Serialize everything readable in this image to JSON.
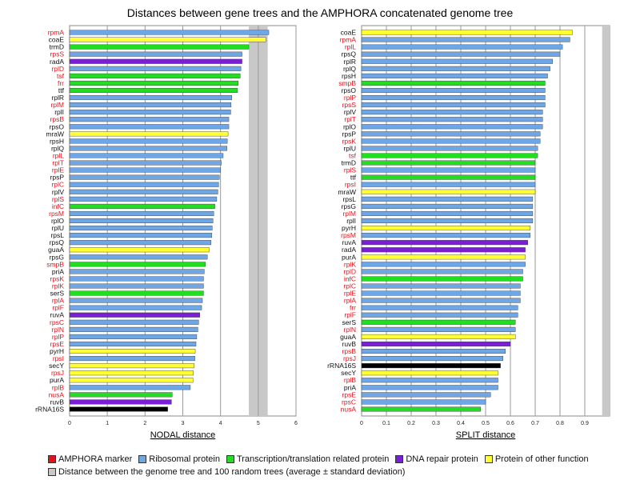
{
  "title": "Distances between gene trees and the AMPHORA concatenated genome tree",
  "colors": {
    "amphora_text": "#e0141e",
    "plain_text": "#111111",
    "ribosomal": "#6fa6e6",
    "transcription": "#22dd22",
    "dna_repair": "#7a1fd6",
    "other": "#ffff33",
    "amphora_marker": "#e0141e",
    "rrna": "#000000",
    "band": "#c8c8c8"
  },
  "legend": [
    {
      "label": "AMPHORA marker",
      "color": "#e0141e"
    },
    {
      "label": "Ribosomal protein",
      "color": "#6fa6e6"
    },
    {
      "label": "Transcription/translation related protein",
      "color": "#22dd22"
    },
    {
      "label": "DNA repair protein",
      "color": "#7a1fd6"
    },
    {
      "label": "Protein of other function",
      "color": "#ffff33"
    }
  ],
  "legend_band": {
    "label": "Distance between the genome tree and 100 random trees (average ± standard deviation)",
    "color": "#c8c8c8"
  },
  "chart_data": [
    {
      "type": "bar",
      "orientation": "horizontal",
      "xlabel": "NODAL distance",
      "xlim": [
        0,
        6
      ],
      "xticks": [
        0,
        1,
        2,
        3,
        4,
        5,
        6
      ],
      "grid": true,
      "band": [
        4.75,
        5.25
      ],
      "genes": [
        {
          "name": "rpmA",
          "value": 5.28,
          "color": "ribosomal",
          "amphora": true
        },
        {
          "name": "coaE",
          "value": 5.2,
          "color": "other",
          "amphora": false
        },
        {
          "name": "trmD",
          "value": 4.75,
          "color": "transcription",
          "amphora": false
        },
        {
          "name": "rpsS",
          "value": 4.57,
          "color": "ribosomal",
          "amphora": true
        },
        {
          "name": "radA",
          "value": 4.57,
          "color": "dna_repair",
          "amphora": false
        },
        {
          "name": "rplD",
          "value": 4.54,
          "color": "ribosomal",
          "amphora": true
        },
        {
          "name": "tsf",
          "value": 4.52,
          "color": "transcription",
          "amphora": true
        },
        {
          "name": "frr",
          "value": 4.47,
          "color": "transcription",
          "amphora": true
        },
        {
          "name": "ttf",
          "value": 4.45,
          "color": "transcription",
          "amphora": false
        },
        {
          "name": "rplR",
          "value": 4.3,
          "color": "ribosomal",
          "amphora": false
        },
        {
          "name": "rplM",
          "value": 4.28,
          "color": "ribosomal",
          "amphora": true
        },
        {
          "name": "rplI",
          "value": 4.27,
          "color": "ribosomal",
          "amphora": false
        },
        {
          "name": "rpsB",
          "value": 4.22,
          "color": "ribosomal",
          "amphora": true
        },
        {
          "name": "rpsO",
          "value": 4.22,
          "color": "ribosomal",
          "amphora": false
        },
        {
          "name": "mraW",
          "value": 4.2,
          "color": "other",
          "amphora": false
        },
        {
          "name": "rpsH",
          "value": 4.18,
          "color": "ribosomal",
          "amphora": false
        },
        {
          "name": "rplQ",
          "value": 4.17,
          "color": "ribosomal",
          "amphora": false
        },
        {
          "name": "rplL",
          "value": 4.07,
          "color": "ribosomal",
          "amphora": true
        },
        {
          "name": "rplT",
          "value": 4.02,
          "color": "ribosomal",
          "amphora": true
        },
        {
          "name": "rplE",
          "value": 4.0,
          "color": "ribosomal",
          "amphora": true
        },
        {
          "name": "rpsP",
          "value": 3.97,
          "color": "ribosomal",
          "amphora": false
        },
        {
          "name": "rplC",
          "value": 3.95,
          "color": "ribosomal",
          "amphora": true
        },
        {
          "name": "rplV",
          "value": 3.93,
          "color": "ribosomal",
          "amphora": false
        },
        {
          "name": "rplS",
          "value": 3.9,
          "color": "ribosomal",
          "amphora": true
        },
        {
          "name": "infC",
          "value": 3.85,
          "color": "transcription",
          "amphora": true
        },
        {
          "name": "rpsM",
          "value": 3.82,
          "color": "ribosomal",
          "amphora": true
        },
        {
          "name": "rplO",
          "value": 3.8,
          "color": "ribosomal",
          "amphora": false
        },
        {
          "name": "rplU",
          "value": 3.78,
          "color": "ribosomal",
          "amphora": false
        },
        {
          "name": "rpsL",
          "value": 3.77,
          "color": "ribosomal",
          "amphora": false
        },
        {
          "name": "rpsQ",
          "value": 3.75,
          "color": "ribosomal",
          "amphora": false
        },
        {
          "name": "guaA",
          "value": 3.7,
          "color": "other",
          "amphora": false
        },
        {
          "name": "rpsG",
          "value": 3.65,
          "color": "ribosomal",
          "amphora": false
        },
        {
          "name": "smpB",
          "value": 3.6,
          "color": "transcription",
          "amphora": true
        },
        {
          "name": "priA",
          "value": 3.57,
          "color": "ribosomal",
          "amphora": false
        },
        {
          "name": "rpsK",
          "value": 3.55,
          "color": "ribosomal",
          "amphora": true
        },
        {
          "name": "rplK",
          "value": 3.55,
          "color": "ribosomal",
          "amphora": true
        },
        {
          "name": "serS",
          "value": 3.55,
          "color": "transcription",
          "amphora": false
        },
        {
          "name": "rplA",
          "value": 3.52,
          "color": "ribosomal",
          "amphora": true
        },
        {
          "name": "rplF",
          "value": 3.5,
          "color": "ribosomal",
          "amphora": true
        },
        {
          "name": "ruvA",
          "value": 3.45,
          "color": "dna_repair",
          "amphora": false
        },
        {
          "name": "rpsC",
          "value": 3.42,
          "color": "ribosomal",
          "amphora": true
        },
        {
          "name": "rplN",
          "value": 3.4,
          "color": "ribosomal",
          "amphora": true
        },
        {
          "name": "rplP",
          "value": 3.37,
          "color": "ribosomal",
          "amphora": true
        },
        {
          "name": "rpsE",
          "value": 3.35,
          "color": "ribosomal",
          "amphora": true
        },
        {
          "name": "pyrH",
          "value": 3.33,
          "color": "other",
          "amphora": false
        },
        {
          "name": "rpsI",
          "value": 3.32,
          "color": "ribosomal",
          "amphora": true
        },
        {
          "name": "secY",
          "value": 3.3,
          "color": "other",
          "amphora": false
        },
        {
          "name": "rpsJ",
          "value": 3.28,
          "color": "other",
          "amphora": true
        },
        {
          "name": "purA",
          "value": 3.27,
          "color": "other",
          "amphora": false
        },
        {
          "name": "rplB",
          "value": 3.2,
          "color": "ribosomal",
          "amphora": true
        },
        {
          "name": "nusA",
          "value": 2.72,
          "color": "transcription",
          "amphora": true
        },
        {
          "name": "ruvB",
          "value": 2.7,
          "color": "dna_repair",
          "amphora": false
        },
        {
          "name": "rRNA16S",
          "value": 2.6,
          "color": "rrna",
          "amphora": false
        }
      ]
    },
    {
      "type": "bar",
      "orientation": "horizontal",
      "xlabel": "SPLIT distance",
      "xlim": [
        0,
        1
      ],
      "xticks": [
        0,
        0.1,
        0.2,
        0.3,
        0.4,
        0.5,
        0.6,
        0.7,
        0.8,
        0.9
      ],
      "grid": true,
      "band": [
        0.97,
        1.0
      ],
      "genes": [
        {
          "name": "coaE",
          "value": 0.85,
          "color": "other",
          "amphora": false
        },
        {
          "name": "rpmA",
          "value": 0.84,
          "color": "ribosomal",
          "amphora": true
        },
        {
          "name": "rplL",
          "value": 0.81,
          "color": "ribosomal",
          "amphora": true
        },
        {
          "name": "rpsQ",
          "value": 0.8,
          "color": "ribosomal",
          "amphora": false
        },
        {
          "name": "rplR",
          "value": 0.77,
          "color": "ribosomal",
          "amphora": false
        },
        {
          "name": "rplQ",
          "value": 0.76,
          "color": "ribosomal",
          "amphora": false
        },
        {
          "name": "rpsH",
          "value": 0.75,
          "color": "ribosomal",
          "amphora": false
        },
        {
          "name": "smpB",
          "value": 0.74,
          "color": "transcription",
          "amphora": true
        },
        {
          "name": "rpsO",
          "value": 0.74,
          "color": "ribosomal",
          "amphora": false
        },
        {
          "name": "rplP",
          "value": 0.74,
          "color": "ribosomal",
          "amphora": true
        },
        {
          "name": "rpsS",
          "value": 0.74,
          "color": "ribosomal",
          "amphora": true
        },
        {
          "name": "rplV",
          "value": 0.73,
          "color": "ribosomal",
          "amphora": false
        },
        {
          "name": "rplT",
          "value": 0.73,
          "color": "ribosomal",
          "amphora": true
        },
        {
          "name": "rplO",
          "value": 0.73,
          "color": "ribosomal",
          "amphora": false
        },
        {
          "name": "rpsP",
          "value": 0.72,
          "color": "ribosomal",
          "amphora": false
        },
        {
          "name": "rpsK",
          "value": 0.72,
          "color": "ribosomal",
          "amphora": true
        },
        {
          "name": "rplU",
          "value": 0.71,
          "color": "ribosomal",
          "amphora": false
        },
        {
          "name": "tsf",
          "value": 0.71,
          "color": "transcription",
          "amphora": true
        },
        {
          "name": "trmD",
          "value": 0.7,
          "color": "transcription",
          "amphora": false
        },
        {
          "name": "rplS",
          "value": 0.7,
          "color": "ribosomal",
          "amphora": true
        },
        {
          "name": "ttf",
          "value": 0.7,
          "color": "transcription",
          "amphora": false
        },
        {
          "name": "rpsI",
          "value": 0.7,
          "color": "ribosomal",
          "amphora": true
        },
        {
          "name": "mraW",
          "value": 0.7,
          "color": "other",
          "amphora": false
        },
        {
          "name": "rpsL",
          "value": 0.69,
          "color": "ribosomal",
          "amphora": false
        },
        {
          "name": "rpsG",
          "value": 0.69,
          "color": "ribosomal",
          "amphora": false
        },
        {
          "name": "rplM",
          "value": 0.69,
          "color": "ribosomal",
          "amphora": true
        },
        {
          "name": "rplI",
          "value": 0.69,
          "color": "ribosomal",
          "amphora": false
        },
        {
          "name": "pyrH",
          "value": 0.68,
          "color": "other",
          "amphora": false
        },
        {
          "name": "rpsM",
          "value": 0.68,
          "color": "ribosomal",
          "amphora": true
        },
        {
          "name": "ruvA",
          "value": 0.67,
          "color": "dna_repair",
          "amphora": false
        },
        {
          "name": "radA",
          "value": 0.66,
          "color": "dna_repair",
          "amphora": false
        },
        {
          "name": "purA",
          "value": 0.66,
          "color": "other",
          "amphora": false
        },
        {
          "name": "rplK",
          "value": 0.66,
          "color": "ribosomal",
          "amphora": true
        },
        {
          "name": "rplD",
          "value": 0.65,
          "color": "ribosomal",
          "amphora": true
        },
        {
          "name": "infC",
          "value": 0.65,
          "color": "transcription",
          "amphora": true
        },
        {
          "name": "rplC",
          "value": 0.64,
          "color": "ribosomal",
          "amphora": true
        },
        {
          "name": "rplE",
          "value": 0.64,
          "color": "ribosomal",
          "amphora": true
        },
        {
          "name": "rplA",
          "value": 0.64,
          "color": "ribosomal",
          "amphora": true
        },
        {
          "name": "frr",
          "value": 0.63,
          "color": "ribosomal",
          "amphora": true
        },
        {
          "name": "rplF",
          "value": 0.63,
          "color": "ribosomal",
          "amphora": true
        },
        {
          "name": "serS",
          "value": 0.62,
          "color": "transcription",
          "amphora": false
        },
        {
          "name": "rplN",
          "value": 0.62,
          "color": "ribosomal",
          "amphora": true
        },
        {
          "name": "guaA",
          "value": 0.62,
          "color": "other",
          "amphora": false
        },
        {
          "name": "ruvB",
          "value": 0.6,
          "color": "dna_repair",
          "amphora": false
        },
        {
          "name": "rpsB",
          "value": 0.58,
          "color": "ribosomal",
          "amphora": true
        },
        {
          "name": "rpsJ",
          "value": 0.57,
          "color": "ribosomal",
          "amphora": true
        },
        {
          "name": "rRNA16S",
          "value": 0.56,
          "color": "rrna",
          "amphora": false
        },
        {
          "name": "secY",
          "value": 0.55,
          "color": "other",
          "amphora": false
        },
        {
          "name": "rplB",
          "value": 0.55,
          "color": "ribosomal",
          "amphora": true
        },
        {
          "name": "priA",
          "value": 0.55,
          "color": "ribosomal",
          "amphora": false
        },
        {
          "name": "rpsE",
          "value": 0.52,
          "color": "ribosomal",
          "amphora": true
        },
        {
          "name": "rpsC",
          "value": 0.5,
          "color": "ribosomal",
          "amphora": true
        },
        {
          "name": "nusA",
          "value": 0.48,
          "color": "transcription",
          "amphora": true
        }
      ]
    }
  ]
}
